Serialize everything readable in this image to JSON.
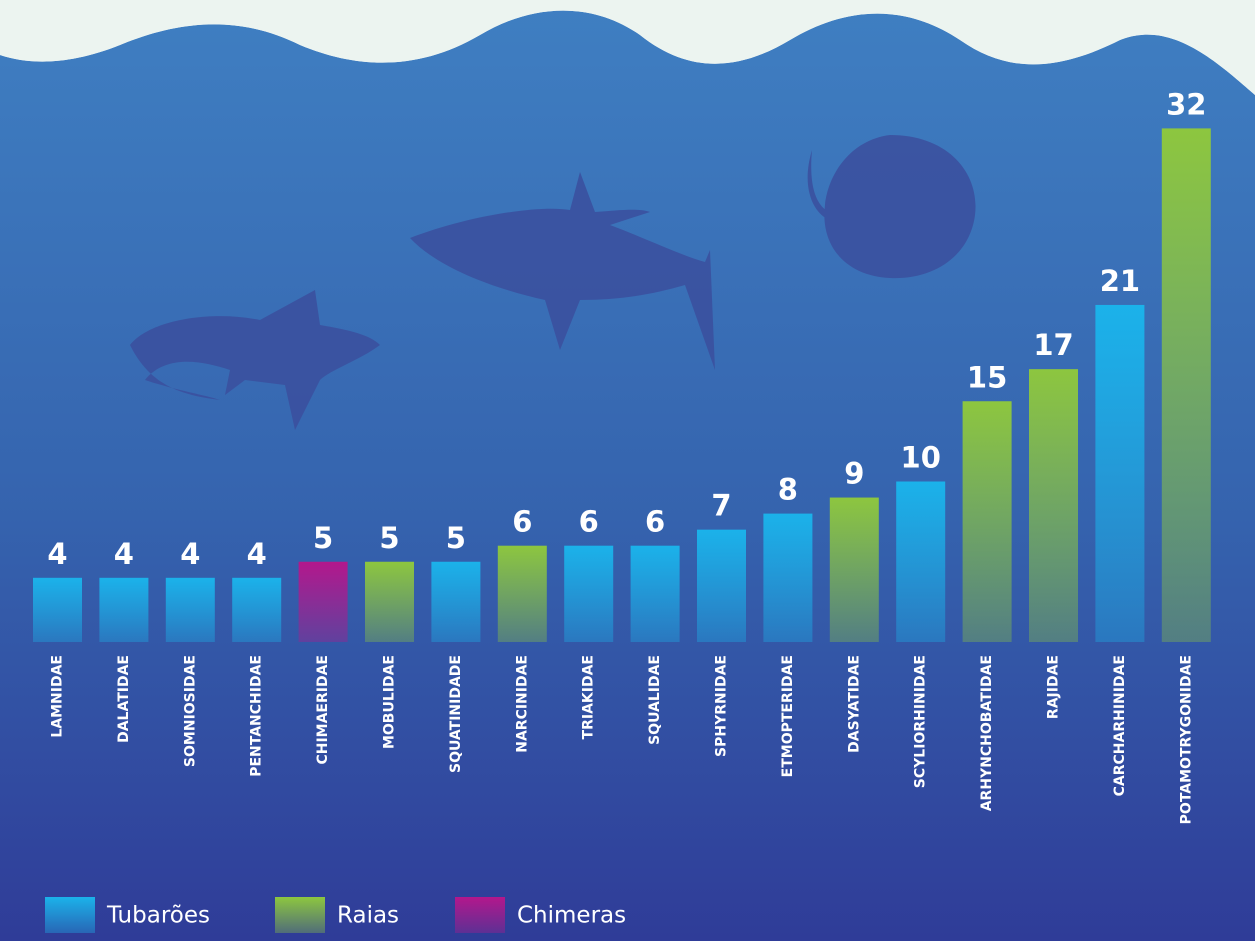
{
  "chart_data": {
    "type": "bar",
    "categories": [
      "LAMNIDAE",
      "DALATIDAE",
      "SOMNIOSIDAE",
      "PENTANCHIDAE",
      "CHIMAERIDAE",
      "MOBULIDAE",
      "SQUATINIDADE",
      "NARCINIDAE",
      "TRIAKIDAE",
      "SQUALIDAE",
      "SPHYRNIDAE",
      "ETMOPTERIDAE",
      "DASYATIDAE",
      "SCYLIORHINIDAE",
      "ARHYNCHOBATIDAE",
      "RAJIDAE",
      "CARCHARHINIDAE",
      "POTAMOTRYGONIDAE"
    ],
    "series": [
      {
        "name": "Tubarões",
        "color": "#1bb2ea",
        "values": [
          4,
          4,
          4,
          4,
          null,
          null,
          5,
          null,
          6,
          6,
          7,
          8,
          null,
          10,
          null,
          null,
          21,
          null
        ]
      },
      {
        "name": "Raias",
        "color": "#8dc63f",
        "values": [
          null,
          null,
          null,
          null,
          null,
          5,
          null,
          6,
          null,
          null,
          null,
          null,
          9,
          null,
          15,
          17,
          null,
          32
        ]
      },
      {
        "name": "Chimeras",
        "color": "#b3178c",
        "values": [
          null,
          null,
          null,
          null,
          5,
          null,
          null,
          null,
          null,
          null,
          null,
          null,
          null,
          null,
          null,
          null,
          null,
          null
        ]
      }
    ]
  }
}
